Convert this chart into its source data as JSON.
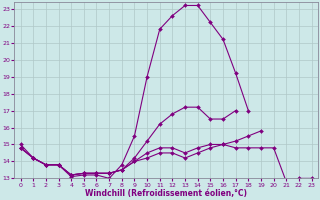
{
  "xlabel": "Windchill (Refroidissement éolien,°C)",
  "x": [
    0,
    1,
    2,
    3,
    4,
    5,
    6,
    7,
    8,
    9,
    10,
    11,
    12,
    13,
    14,
    15,
    16,
    17,
    18,
    19,
    20,
    21,
    22,
    23
  ],
  "line1": [
    15.0,
    14.2,
    13.8,
    13.8,
    13.1,
    13.2,
    13.2,
    13.0,
    13.8,
    15.5,
    19.0,
    21.8,
    22.6,
    23.2,
    23.2,
    22.2,
    21.2,
    19.2,
    17.0,
    null,
    null,
    null,
    null,
    null
  ],
  "line2": [
    14.8,
    14.2,
    13.8,
    13.8,
    13.2,
    13.3,
    13.3,
    13.3,
    13.5,
    14.2,
    15.2,
    16.2,
    16.8,
    17.2,
    17.2,
    16.5,
    16.5,
    17.0,
    null,
    null,
    null,
    null,
    null,
    null
  ],
  "line3": [
    14.8,
    14.2,
    13.8,
    13.8,
    13.2,
    13.3,
    13.3,
    13.3,
    13.5,
    14.0,
    14.5,
    14.8,
    14.8,
    14.5,
    14.8,
    15.0,
    15.0,
    14.8,
    14.8,
    14.8,
    14.8,
    12.8,
    13.0,
    13.0
  ],
  "line4": [
    14.8,
    14.2,
    13.8,
    13.8,
    13.2,
    13.3,
    13.3,
    13.3,
    13.5,
    14.0,
    14.2,
    14.5,
    14.5,
    14.2,
    14.5,
    14.8,
    15.0,
    15.2,
    15.5,
    15.8,
    null,
    null,
    null,
    null
  ],
  "bg_color": "#cde8e8",
  "grid_color": "#b0c8c8",
  "line_color": "#800080",
  "ylim": [
    13,
    23
  ],
  "xlim": [
    0,
    23
  ],
  "tick_fontsize": 4.5,
  "xlabel_fontsize": 5.5
}
